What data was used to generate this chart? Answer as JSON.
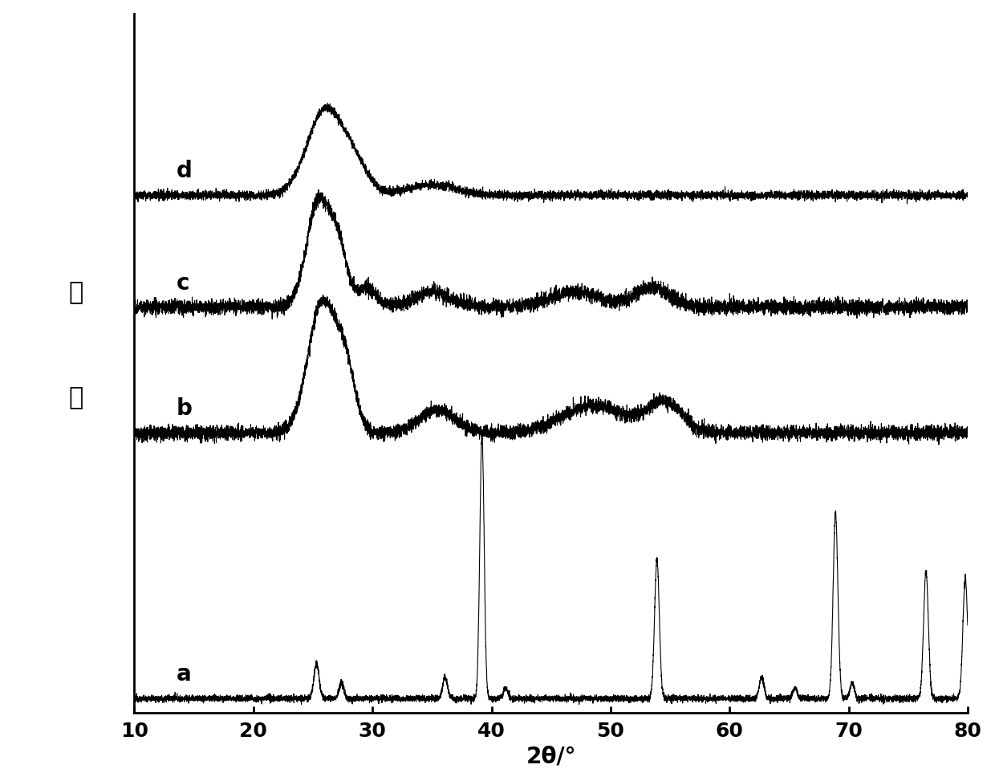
{
  "xlabel": "2θ/°",
  "ylabel_chars": [
    "强",
    "度"
  ],
  "xlim": [
    10,
    80
  ],
  "xticks": [
    10,
    20,
    30,
    40,
    50,
    60,
    70,
    80
  ],
  "curve_labels": [
    "a",
    "b",
    "c",
    "d"
  ],
  "background_color": "#ffffff",
  "line_color": "#000000",
  "label_fontsize": 20,
  "tick_fontsize": 18,
  "curve_label_fontsize": 20,
  "offsets": [
    0.0,
    0.38,
    0.56,
    0.72
  ],
  "scales": [
    0.38,
    0.22,
    0.18,
    0.15
  ]
}
